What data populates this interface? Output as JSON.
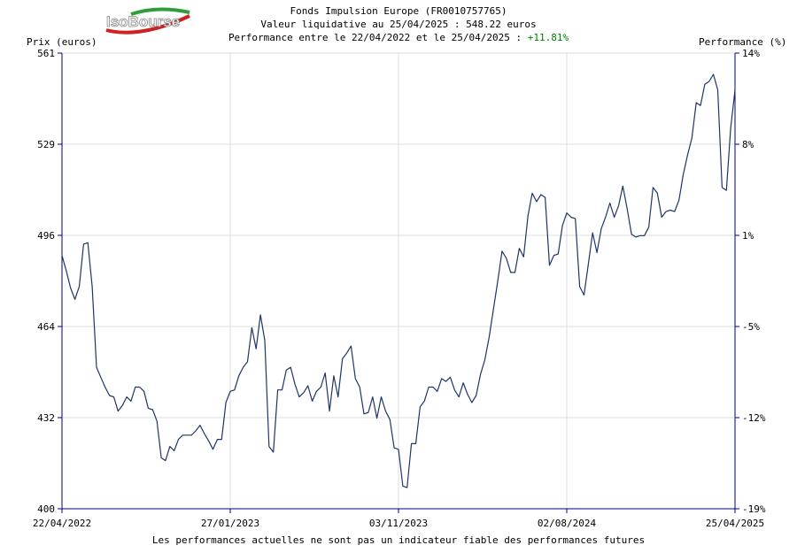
{
  "header": {
    "line1": "Fonds Impulsion Europe (FR0010757765)",
    "line2": "Valeur liquidative au 25/04/2025 : 548.22 euros",
    "line3_prefix": "Performance entre le 22/04/2022 et le 25/04/2025 : ",
    "line3_value": "+11.81%"
  },
  "logo": {
    "text": "IsoBourse"
  },
  "footer": "Les performances actuelles ne sont pas un indicateur fiable des performances futures",
  "colors": {
    "line": "#1f3566",
    "axis": "#000080",
    "grid": "#dddddd",
    "positive": "#008000"
  },
  "chart_data": {
    "type": "line",
    "ylabel_left": "Prix (euros)",
    "ylabel_right": "Performance (%)",
    "ylim": [
      400,
      561
    ],
    "y_ticks": [
      "400",
      "432",
      "464",
      "496",
      "529",
      "561"
    ],
    "y2_ticks": [
      "-19%",
      "-12%",
      "-5%",
      "1%",
      "8%",
      "14%"
    ],
    "x_ticks": [
      "22/04/2022",
      "27/01/2023",
      "03/11/2023",
      "02/08/2024",
      "25/04/2025"
    ],
    "grid": true,
    "series": [
      {
        "values": [
          489.5,
          484.0,
          478.0,
          474.0,
          478.5,
          493.5,
          494.0,
          478.5,
          450.0,
          446.5,
          443.0,
          440.0,
          439.5,
          434.5,
          436.5,
          439.5,
          438.0,
          443.0,
          443.0,
          441.5,
          435.5,
          435.0,
          431.0,
          418.0,
          417.0,
          422.0,
          420.5,
          424.5,
          426.0,
          426.0,
          426.0,
          427.5,
          429.5,
          426.5,
          424.0,
          421.0,
          424.5,
          424.5,
          437.5,
          441.5,
          442.0,
          447.0,
          450.0,
          452.0,
          464.0,
          456.5,
          468.5,
          459.5,
          422.0,
          420.0,
          442.0,
          442.0,
          449.0,
          450.0,
          444.0,
          439.5,
          441.0,
          443.5,
          438.0,
          441.5,
          443.0,
          448.0,
          434.5,
          447.0,
          439.5,
          453.0,
          455.0,
          457.5,
          446.0,
          443.0,
          433.5,
          434.0,
          439.5,
          432.0,
          439.5,
          434.5,
          431.5,
          421.5,
          421.0,
          408.0,
          407.5,
          423.0,
          423.0,
          436.0,
          438.0,
          443.0,
          443.0,
          441.5,
          446.0,
          445.0,
          446.5,
          442.0,
          439.5,
          444.5,
          440.5,
          437.5,
          440.0,
          447.5,
          452.5,
          460.5,
          470.5,
          480.5,
          491.0,
          488.5,
          483.5,
          483.5,
          492.0,
          489.0,
          503.5,
          511.5,
          508.5,
          511.0,
          510.0,
          486.0,
          489.5,
          490.0,
          500.0,
          504.5,
          503.0,
          502.5,
          478.5,
          475.5,
          486.5,
          497.5,
          490.5,
          499.0,
          503.0,
          508.0,
          503.0,
          507.0,
          514.0,
          506.0,
          497.0,
          496.0,
          496.5,
          496.5,
          499.5,
          513.5,
          511.5,
          503.0,
          505.0,
          505.5,
          505.0,
          509.0,
          518.0,
          525.0,
          531.0,
          543.5,
          542.5,
          550.0,
          551.0,
          553.5,
          548.0,
          513.5,
          512.5,
          534.5,
          548.0
        ]
      }
    ]
  }
}
